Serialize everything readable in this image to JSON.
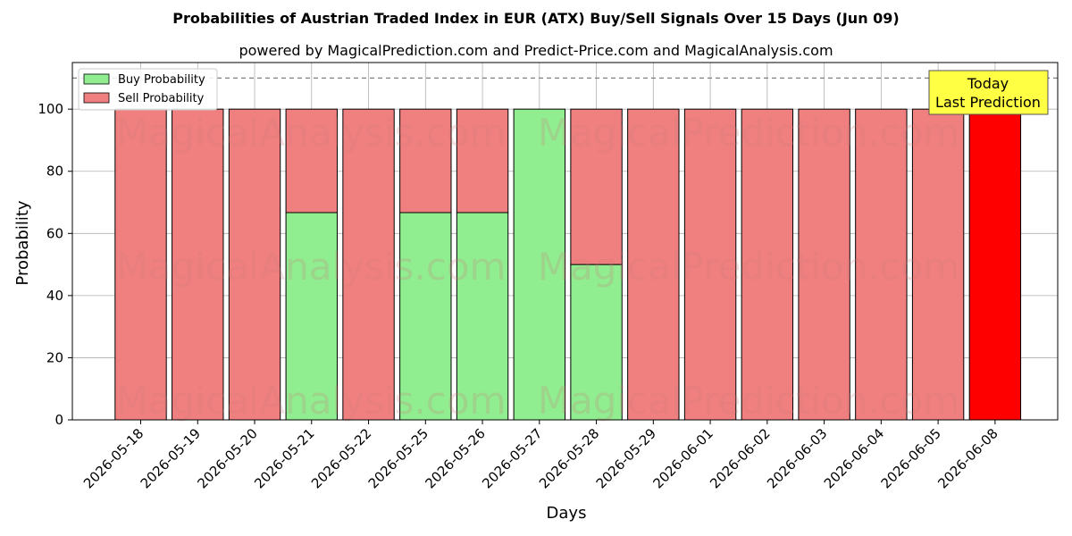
{
  "chart_data": {
    "type": "bar",
    "title": "Probabilities of Austrian Traded Index in EUR (ATX) Buy/Sell Signals Over 15 Days (Jun 09)",
    "subtitle": "powered by MagicalPrediction.com and Predict-Price.com and MagicalAnalysis.com",
    "xlabel": "Days",
    "ylabel": "Probability",
    "ylim": [
      0,
      115
    ],
    "yticks": [
      0,
      20,
      40,
      60,
      80,
      100
    ],
    "reference_line": 110,
    "grid": true,
    "stacked": true,
    "legend": {
      "position": "top-left"
    },
    "categories": [
      "2026-05-18",
      "2026-05-19",
      "2026-05-20",
      "2026-05-21",
      "2026-05-22",
      "2026-05-25",
      "2026-05-26",
      "2026-05-27",
      "2026-05-28",
      "2026-05-29",
      "2026-06-01",
      "2026-06-02",
      "2026-06-03",
      "2026-06-04",
      "2026-06-05",
      "2026-06-08"
    ],
    "series": [
      {
        "name": "Buy Probability",
        "color": "#90ee90",
        "values": [
          0,
          0,
          0,
          66.7,
          0,
          66.7,
          66.7,
          100,
          50,
          0,
          0,
          0,
          0,
          0,
          0,
          0
        ]
      },
      {
        "name": "Sell Probability",
        "color": "#f08080",
        "values": [
          100,
          100,
          100,
          33.3,
          100,
          33.3,
          33.3,
          0,
          50,
          100,
          100,
          100,
          100,
          100,
          100,
          100
        ]
      }
    ],
    "highlight": {
      "index": 15,
      "color": "#ff0000"
    },
    "annotation": {
      "lines": [
        "Today",
        "Last Prediction"
      ],
      "background": "#ffff44"
    },
    "watermarks": [
      "MagicalAnalysis.com",
      "MagicalPrediction.com"
    ]
  }
}
